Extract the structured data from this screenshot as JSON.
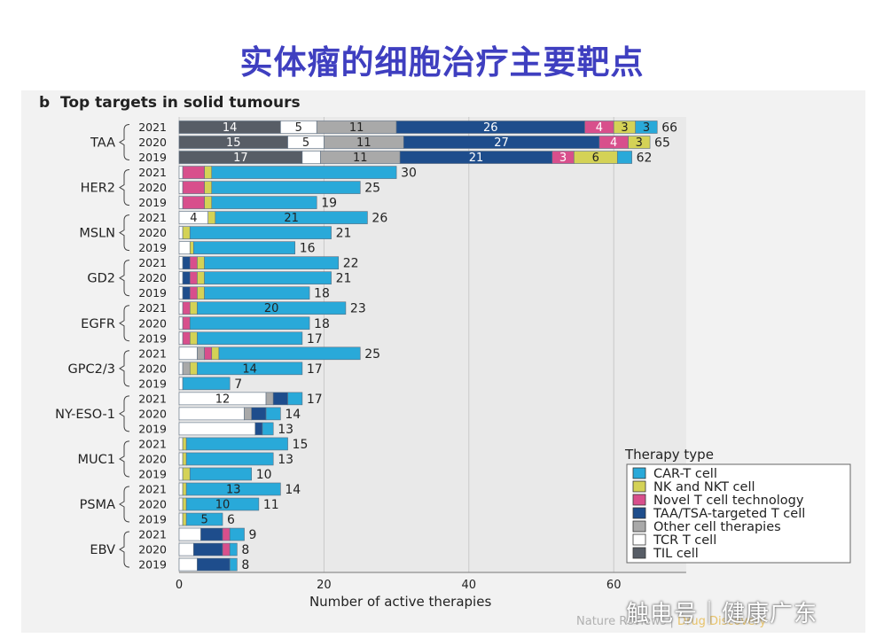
{
  "slide_title": "实体瘤的细胞治疗主要靶点",
  "watermark": "触电号｜健康广东",
  "journal": {
    "name": "Nature Reviews",
    "separator": "|",
    "section": "Drug Discovery"
  },
  "colors": {
    "CAR-T cell": "#29a9d9",
    "NK and NKT cell": "#d4d256",
    "Novel T cell technology": "#d84f8c",
    "TAA/TSA-targeted T cell": "#1e4d8c",
    "Other cell therapies": "#a9a9a9",
    "TCR T cell": "#ffffff",
    "TIL cell": "#575d66"
  },
  "chart_data": {
    "type": "bar",
    "orientation": "horizontal",
    "stacked": true,
    "panel_label": "b",
    "title": "Top targets in solid tumours",
    "xlabel": "Number of active therapies",
    "xlim": [
      0,
      70
    ],
    "xticks": [
      0,
      20,
      40,
      60
    ],
    "grid": true,
    "legend_title": "Therapy type",
    "legend_position": "bottom-right",
    "series_order": [
      "TIL cell",
      "TCR T cell",
      "Other cell therapies",
      "TAA/TSA-targeted T cell",
      "Novel T cell technology",
      "NK and NKT cell",
      "CAR-T cell"
    ],
    "legend_order": [
      "CAR-T cell",
      "NK and NKT cell",
      "Novel T cell technology",
      "TAA/TSA-targeted T cell",
      "Other cell therapies",
      "TCR T cell",
      "TIL cell"
    ],
    "groups": [
      {
        "target": "TAA",
        "rows": [
          {
            "year": "2021",
            "total": 66,
            "segments": [
              {
                "type": "TIL cell",
                "value": 14,
                "label": "14"
              },
              {
                "type": "TCR T cell",
                "value": 5,
                "label": "5"
              },
              {
                "type": "Other cell therapies",
                "value": 11,
                "label": "11"
              },
              {
                "type": "TAA/TSA-targeted T cell",
                "value": 26,
                "label": "26"
              },
              {
                "type": "Novel T cell technology",
                "value": 4,
                "label": "4"
              },
              {
                "type": "NK and NKT cell",
                "value": 3,
                "label": "3"
              },
              {
                "type": "CAR-T cell",
                "value": 3,
                "label": "3"
              }
            ]
          },
          {
            "year": "2020",
            "total": 65,
            "segments": [
              {
                "type": "TIL cell",
                "value": 15,
                "label": "15"
              },
              {
                "type": "TCR T cell",
                "value": 5,
                "label": "5"
              },
              {
                "type": "Other cell therapies",
                "value": 11,
                "label": "11"
              },
              {
                "type": "TAA/TSA-targeted T cell",
                "value": 27,
                "label": "27"
              },
              {
                "type": "Novel T cell technology",
                "value": 4,
                "label": "4"
              },
              {
                "type": "NK and NKT cell",
                "value": 3,
                "label": "3"
              }
            ]
          },
          {
            "year": "2019",
            "total": 62,
            "segments": [
              {
                "type": "TIL cell",
                "value": 17,
                "label": "17"
              },
              {
                "type": "TCR T cell",
                "value": 2.5
              },
              {
                "type": "Other cell therapies",
                "value": 11,
                "label": "11"
              },
              {
                "type": "TAA/TSA-targeted T cell",
                "value": 21,
                "label": "21"
              },
              {
                "type": "Novel T cell technology",
                "value": 3,
                "label": "3"
              },
              {
                "type": "NK and NKT cell",
                "value": 6,
                "label": "6"
              },
              {
                "type": "CAR-T cell",
                "value": 2
              }
            ]
          }
        ]
      },
      {
        "target": "HER2",
        "rows": [
          {
            "year": "2021",
            "total": 30,
            "segments": [
              {
                "type": "TCR T cell",
                "value": 0.5
              },
              {
                "type": "Novel T cell technology",
                "value": 3
              },
              {
                "type": "NK and NKT cell",
                "value": 1
              },
              {
                "type": "CAR-T cell",
                "value": 25.5
              }
            ]
          },
          {
            "year": "2020",
            "total": 25,
            "segments": [
              {
                "type": "TCR T cell",
                "value": 0.5
              },
              {
                "type": "Novel T cell technology",
                "value": 3
              },
              {
                "type": "NK and NKT cell",
                "value": 1
              },
              {
                "type": "CAR-T cell",
                "value": 20.5
              }
            ]
          },
          {
            "year": "2019",
            "total": 19,
            "segments": [
              {
                "type": "TCR T cell",
                "value": 0.5
              },
              {
                "type": "Novel T cell technology",
                "value": 3
              },
              {
                "type": "NK and NKT cell",
                "value": 1
              },
              {
                "type": "CAR-T cell",
                "value": 14.5
              }
            ]
          }
        ]
      },
      {
        "target": "MSLN",
        "rows": [
          {
            "year": "2021",
            "total": 26,
            "segments": [
              {
                "type": "TCR T cell",
                "value": 4,
                "label": "4"
              },
              {
                "type": "NK and NKT cell",
                "value": 1
              },
              {
                "type": "CAR-T cell",
                "value": 21,
                "label": "21"
              }
            ]
          },
          {
            "year": "2020",
            "total": 21,
            "segments": [
              {
                "type": "TCR T cell",
                "value": 0.5
              },
              {
                "type": "NK and NKT cell",
                "value": 1
              },
              {
                "type": "CAR-T cell",
                "value": 19.5
              }
            ]
          },
          {
            "year": "2019",
            "total": 16,
            "segments": [
              {
                "type": "TCR T cell",
                "value": 1.5
              },
              {
                "type": "NK and NKT cell",
                "value": 0.5
              },
              {
                "type": "CAR-T cell",
                "value": 14
              }
            ]
          }
        ]
      },
      {
        "target": "GD2",
        "rows": [
          {
            "year": "2021",
            "total": 22,
            "segments": [
              {
                "type": "TCR T cell",
                "value": 0.5
              },
              {
                "type": "TAA/TSA-targeted T cell",
                "value": 1
              },
              {
                "type": "Novel T cell technology",
                "value": 1
              },
              {
                "type": "NK and NKT cell",
                "value": 1
              },
              {
                "type": "CAR-T cell",
                "value": 18.5
              }
            ]
          },
          {
            "year": "2020",
            "total": 21,
            "segments": [
              {
                "type": "TCR T cell",
                "value": 0.5
              },
              {
                "type": "TAA/TSA-targeted T cell",
                "value": 1
              },
              {
                "type": "Novel T cell technology",
                "value": 1
              },
              {
                "type": "NK and NKT cell",
                "value": 1
              },
              {
                "type": "CAR-T cell",
                "value": 17.5
              }
            ]
          },
          {
            "year": "2019",
            "total": 18,
            "segments": [
              {
                "type": "TCR T cell",
                "value": 0.5
              },
              {
                "type": "TAA/TSA-targeted T cell",
                "value": 1
              },
              {
                "type": "Novel T cell technology",
                "value": 1
              },
              {
                "type": "NK and NKT cell",
                "value": 1
              },
              {
                "type": "CAR-T cell",
                "value": 14.5
              }
            ]
          }
        ]
      },
      {
        "target": "EGFR",
        "rows": [
          {
            "year": "2021",
            "total": 23,
            "segments": [
              {
                "type": "TCR T cell",
                "value": 0.5
              },
              {
                "type": "Novel T cell technology",
                "value": 1
              },
              {
                "type": "NK and NKT cell",
                "value": 1
              },
              {
                "type": "CAR-T cell",
                "value": 20.5,
                "label": "20"
              }
            ]
          },
          {
            "year": "2020",
            "total": 18,
            "segments": [
              {
                "type": "TCR T cell",
                "value": 0.5
              },
              {
                "type": "Novel T cell technology",
                "value": 1
              },
              {
                "type": "CAR-T cell",
                "value": 16.5
              }
            ]
          },
          {
            "year": "2019",
            "total": 17,
            "segments": [
              {
                "type": "TCR T cell",
                "value": 0.5
              },
              {
                "type": "Novel T cell technology",
                "value": 1
              },
              {
                "type": "NK and NKT cell",
                "value": 1
              },
              {
                "type": "CAR-T cell",
                "value": 14.5
              }
            ]
          }
        ]
      },
      {
        "target": "GPC2/3",
        "rows": [
          {
            "year": "2021",
            "total": 25,
            "segments": [
              {
                "type": "TCR T cell",
                "value": 2.5
              },
              {
                "type": "Other cell therapies",
                "value": 1
              },
              {
                "type": "Novel T cell technology",
                "value": 1
              },
              {
                "type": "NK and NKT cell",
                "value": 1
              },
              {
                "type": "CAR-T cell",
                "value": 19.5
              }
            ]
          },
          {
            "year": "2020",
            "total": 17,
            "segments": [
              {
                "type": "TCR T cell",
                "value": 0.5
              },
              {
                "type": "Other cell therapies",
                "value": 1
              },
              {
                "type": "NK and NKT cell",
                "value": 1
              },
              {
                "type": "CAR-T cell",
                "value": 14.5,
                "label": "14"
              }
            ]
          },
          {
            "year": "2019",
            "total": 7,
            "segments": [
              {
                "type": "TCR T cell",
                "value": 0.5
              },
              {
                "type": "CAR-T cell",
                "value": 6.5
              }
            ]
          }
        ]
      },
      {
        "target": "NY-ESO-1",
        "rows": [
          {
            "year": "2021",
            "total": 17,
            "segments": [
              {
                "type": "TCR T cell",
                "value": 12,
                "label": "12"
              },
              {
                "type": "Other cell therapies",
                "value": 1
              },
              {
                "type": "TAA/TSA-targeted T cell",
                "value": 2
              },
              {
                "type": "CAR-T cell",
                "value": 2
              }
            ]
          },
          {
            "year": "2020",
            "total": 14,
            "segments": [
              {
                "type": "TCR T cell",
                "value": 9
              },
              {
                "type": "Other cell therapies",
                "value": 1
              },
              {
                "type": "TAA/TSA-targeted T cell",
                "value": 2
              },
              {
                "type": "CAR-T cell",
                "value": 2
              }
            ]
          },
          {
            "year": "2019",
            "total": 13,
            "segments": [
              {
                "type": "TCR T cell",
                "value": 10.5
              },
              {
                "type": "TAA/TSA-targeted T cell",
                "value": 1
              },
              {
                "type": "CAR-T cell",
                "value": 1.5
              }
            ]
          }
        ]
      },
      {
        "target": "MUC1",
        "rows": [
          {
            "year": "2021",
            "total": 15,
            "segments": [
              {
                "type": "TCR T cell",
                "value": 0.5
              },
              {
                "type": "NK and NKT cell",
                "value": 0.5
              },
              {
                "type": "CAR-T cell",
                "value": 14
              }
            ]
          },
          {
            "year": "2020",
            "total": 13,
            "segments": [
              {
                "type": "TCR T cell",
                "value": 0.5
              },
              {
                "type": "NK and NKT cell",
                "value": 0.5
              },
              {
                "type": "CAR-T cell",
                "value": 12
              }
            ]
          },
          {
            "year": "2019",
            "total": 10,
            "segments": [
              {
                "type": "TCR T cell",
                "value": 0.5
              },
              {
                "type": "NK and NKT cell",
                "value": 1
              },
              {
                "type": "CAR-T cell",
                "value": 8.5
              }
            ]
          }
        ]
      },
      {
        "target": "PSMA",
        "rows": [
          {
            "year": "2021",
            "total": 14,
            "segments": [
              {
                "type": "TCR T cell",
                "value": 0.5
              },
              {
                "type": "NK and NKT cell",
                "value": 0.5
              },
              {
                "type": "CAR-T cell",
                "value": 13,
                "label": "13"
              }
            ]
          },
          {
            "year": "2020",
            "total": 11,
            "segments": [
              {
                "type": "TCR T cell",
                "value": 0.5
              },
              {
                "type": "NK and NKT cell",
                "value": 0.5
              },
              {
                "type": "CAR-T cell",
                "value": 10,
                "label": "10"
              }
            ]
          },
          {
            "year": "2019",
            "total": 6,
            "segments": [
              {
                "type": "TCR T cell",
                "value": 0.5
              },
              {
                "type": "NK and NKT cell",
                "value": 0.5
              },
              {
                "type": "CAR-T cell",
                "value": 5,
                "label": "5"
              }
            ]
          }
        ]
      },
      {
        "target": "EBV",
        "rows": [
          {
            "year": "2021",
            "total": 9,
            "segments": [
              {
                "type": "TCR T cell",
                "value": 3
              },
              {
                "type": "TAA/TSA-targeted T cell",
                "value": 3
              },
              {
                "type": "Novel T cell technology",
                "value": 1
              },
              {
                "type": "CAR-T cell",
                "value": 2
              }
            ]
          },
          {
            "year": "2020",
            "total": 8,
            "segments": [
              {
                "type": "TCR T cell",
                "value": 2
              },
              {
                "type": "TAA/TSA-targeted T cell",
                "value": 4
              },
              {
                "type": "Novel T cell technology",
                "value": 1
              },
              {
                "type": "CAR-T cell",
                "value": 1
              }
            ]
          },
          {
            "year": "2019",
            "total": 8,
            "segments": [
              {
                "type": "TCR T cell",
                "value": 2.5
              },
              {
                "type": "TAA/TSA-targeted T cell",
                "value": 4.5
              },
              {
                "type": "CAR-T cell",
                "value": 1
              }
            ]
          }
        ]
      }
    ]
  }
}
